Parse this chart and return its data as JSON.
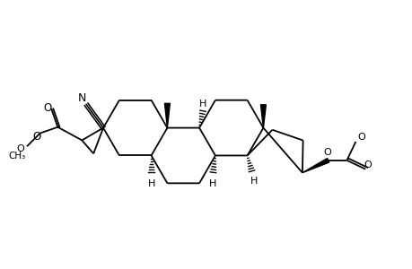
{
  "background": "#ffffff",
  "line_color": "#000000",
  "line_width": 1.3,
  "fig_width": 4.6,
  "fig_height": 3.0,
  "dpi": 100,
  "xlim": [
    0,
    9.2
  ],
  "ylim": [
    0,
    6.0
  ]
}
